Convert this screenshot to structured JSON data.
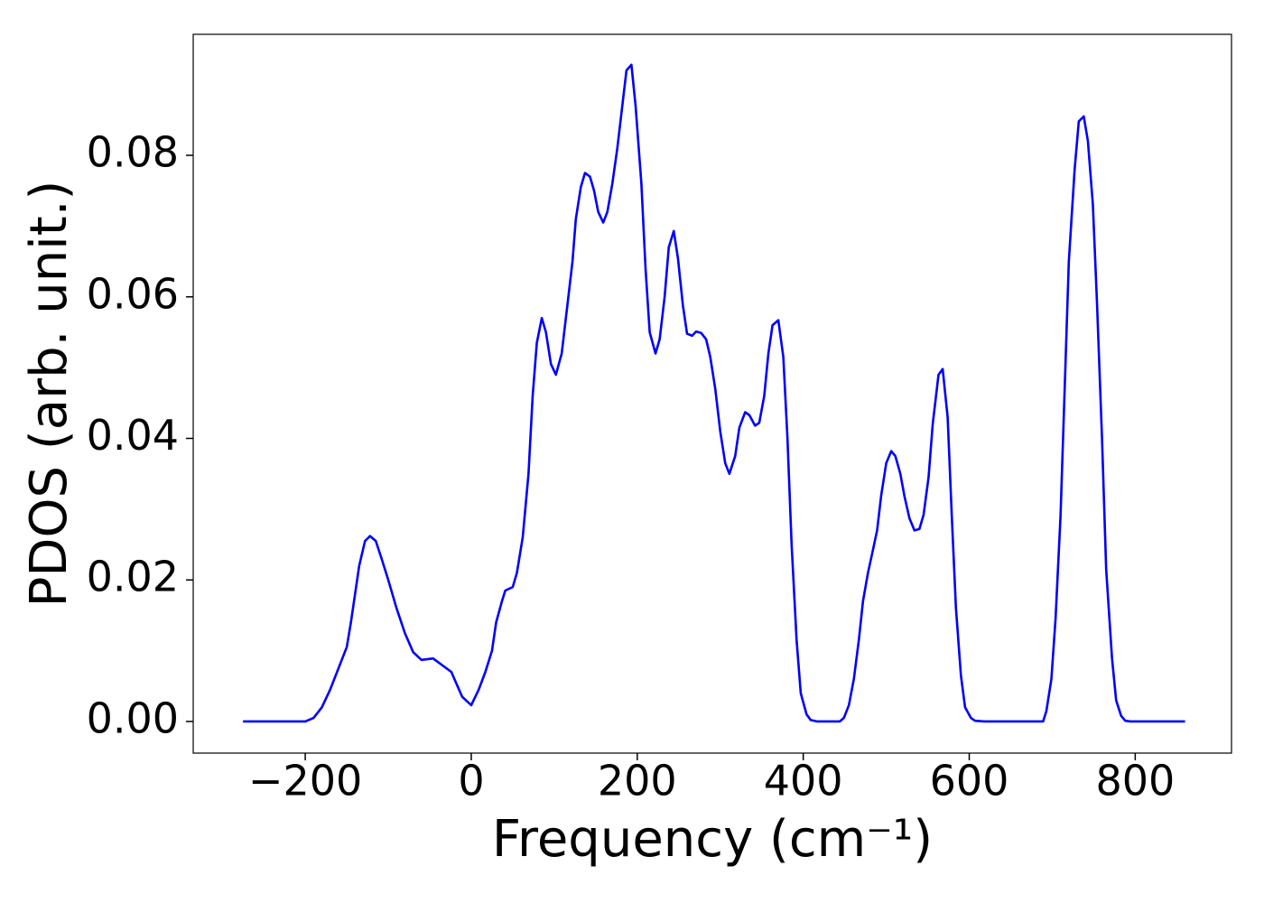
{
  "chart_data": {
    "type": "line",
    "xlabel": "Frequency (cm⁻¹)",
    "ylabel": "PDOS (arb. unit.)",
    "xlim": [
      -335,
      916
    ],
    "ylim": [
      -0.00447,
      0.0971
    ],
    "xticks": [
      {
        "value": -200,
        "label": "−200"
      },
      0,
      200,
      400,
      600,
      800
    ],
    "yticks": [
      {
        "value": 0,
        "label": "0.00"
      },
      0.02,
      0.04,
      0.06,
      0.08
    ],
    "grid": false,
    "series": [
      {
        "name": "PDOS",
        "color": "#0000ff",
        "x": [
          -275,
          -200,
          -190,
          -180,
          -170,
          -160,
          -150,
          -145,
          -140,
          -135,
          -128,
          -122,
          -115,
          -108,
          -100,
          -90,
          -80,
          -70,
          -60,
          -46,
          -24,
          -11,
          0,
          9,
          17,
          25,
          30,
          37,
          41,
          50,
          55,
          62,
          69,
          74,
          79,
          85,
          90,
          96,
          102,
          109,
          115,
          122,
          126,
          132,
          137,
          143,
          148,
          153,
          159,
          164,
          170,
          176,
          182,
          187,
          193,
          198,
          205,
          210,
          215,
          222,
          227,
          233,
          238,
          244,
          249,
          255,
          260,
          266,
          271,
          277,
          283,
          288,
          294,
          300,
          306,
          311,
          318,
          323,
          330,
          335,
          342,
          347,
          353,
          358,
          363,
          370,
          376,
          381,
          386,
          392,
          397,
          404,
          409,
          417,
          444,
          449,
          455,
          461,
          467,
          472,
          478,
          483,
          489,
          494,
          500,
          506,
          511,
          517,
          522,
          528,
          534,
          540,
          545,
          551,
          556,
          563,
          568,
          574,
          579,
          584,
          590,
          595,
          602,
          607,
          618,
          689,
          693,
          699,
          704,
          710,
          715,
          720,
          727,
          732,
          738,
          743,
          749,
          754,
          760,
          765,
          772,
          777,
          783,
          788,
          794,
          860
        ],
        "values": [
          0,
          0,
          0.0005,
          0.002,
          0.0045,
          0.0075,
          0.0105,
          0.014,
          0.018,
          0.022,
          0.0255,
          0.0262,
          0.0255,
          0.023,
          0.02,
          0.016,
          0.0125,
          0.0098,
          0.0087,
          0.0089,
          0.007,
          0.0035,
          0.0023,
          0.0045,
          0.007,
          0.01,
          0.014,
          0.017,
          0.0185,
          0.019,
          0.021,
          0.026,
          0.035,
          0.046,
          0.0535,
          0.057,
          0.055,
          0.0505,
          0.049,
          0.052,
          0.058,
          0.065,
          0.071,
          0.0755,
          0.0775,
          0.077,
          0.075,
          0.072,
          0.0705,
          0.072,
          0.076,
          0.081,
          0.087,
          0.092,
          0.0928,
          0.087,
          0.076,
          0.064,
          0.055,
          0.052,
          0.054,
          0.06,
          0.067,
          0.0693,
          0.0655,
          0.0588,
          0.0548,
          0.0545,
          0.0551,
          0.0549,
          0.054,
          0.0515,
          0.047,
          0.041,
          0.0365,
          0.035,
          0.0375,
          0.0415,
          0.0437,
          0.0433,
          0.0418,
          0.0422,
          0.046,
          0.052,
          0.056,
          0.0567,
          0.0515,
          0.04,
          0.025,
          0.0115,
          0.004,
          0.001,
          0.0002,
          0,
          0,
          0.0005,
          0.0023,
          0.006,
          0.0115,
          0.017,
          0.021,
          0.0237,
          0.027,
          0.032,
          0.0365,
          0.0382,
          0.0375,
          0.035,
          0.0318,
          0.0287,
          0.027,
          0.0272,
          0.0292,
          0.0345,
          0.042,
          0.049,
          0.0498,
          0.043,
          0.029,
          0.016,
          0.0065,
          0.002,
          0.0005,
          0.0001,
          0,
          0,
          0.0015,
          0.006,
          0.0145,
          0.029,
          0.047,
          0.065,
          0.078,
          0.0848,
          0.0855,
          0.082,
          0.073,
          0.059,
          0.04,
          0.0215,
          0.009,
          0.003,
          0.0008,
          0.0001,
          0,
          0
        ]
      }
    ]
  }
}
